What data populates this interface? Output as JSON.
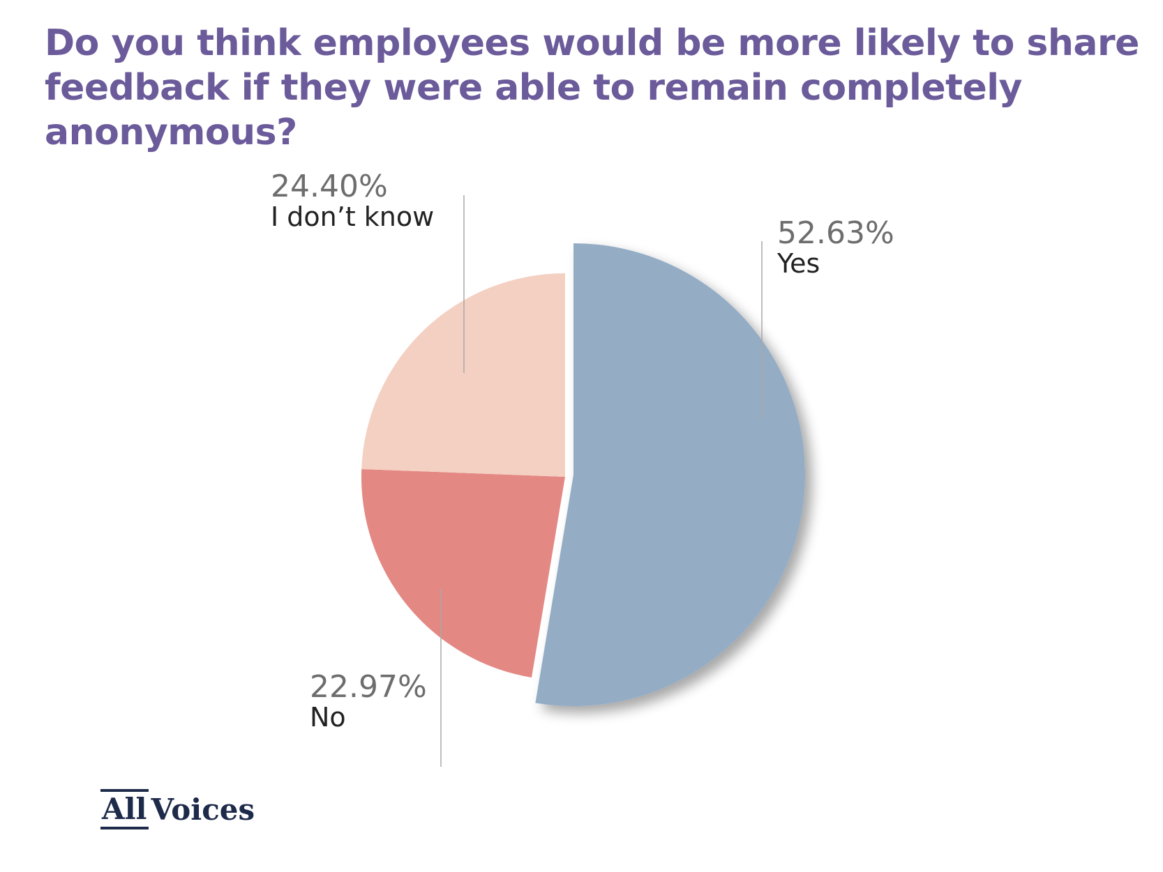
{
  "title": "Do you think employees would be more likely to share feedback if they were able to remain completely anonymous?",
  "chart_data": {
    "type": "pie",
    "title": "Do you think employees would be more likely to share feedback if they were able to remain completely anonymous?",
    "slices": [
      {
        "label": "Yes",
        "value": 52.63,
        "display": "52.63%",
        "color": "#94adc5"
      },
      {
        "label": "No",
        "value": 22.97,
        "display": "22.97%",
        "color": "#e48884"
      },
      {
        "label": "I don’t know",
        "value": 24.4,
        "display": "24.40%",
        "color": "#f4d0c2"
      }
    ],
    "start": "12 o'clock, clockwise",
    "legend": "none"
  },
  "logo": {
    "part1": "All",
    "part2": "Voices"
  }
}
